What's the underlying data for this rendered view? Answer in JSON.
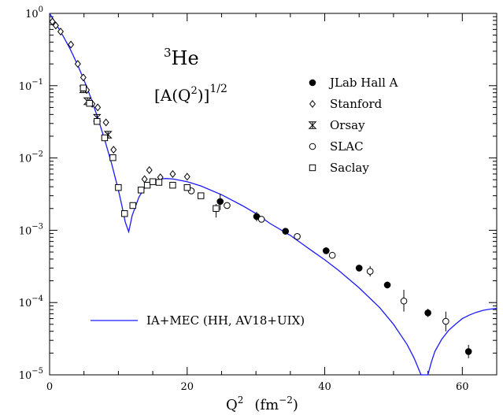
{
  "chart_data": {
    "type": "scatter",
    "title_line1": {
      "prefix": "3",
      "main": "He"
    },
    "title_line2": {
      "open": "[A(Q",
      "sup": "2",
      "close": ")]",
      "exp": "1/2"
    },
    "xlabel": {
      "main": "Q",
      "sup1": "2",
      "unit_open": "(fm",
      "sup2": "−2",
      "unit_close": ")"
    },
    "xlim": [
      0,
      65
    ],
    "ylim": [
      1e-05,
      1
    ],
    "yscale": "log",
    "xticks": [
      0,
      20,
      40,
      60
    ],
    "xtick_labels": [
      "0",
      "20",
      "40",
      "60"
    ],
    "yticks": [
      {
        "value": 1,
        "base": "10",
        "exp": "0"
      },
      {
        "value": 0.1,
        "base": "10",
        "exp": "−1"
      },
      {
        "value": 0.01,
        "base": "10",
        "exp": "−2"
      },
      {
        "value": 0.001,
        "base": "10",
        "exp": "−3"
      },
      {
        "value": 0.0001,
        "base": "10",
        "exp": "−4"
      },
      {
        "value": 1e-05,
        "base": "10",
        "exp": "−5"
      }
    ],
    "grid": false,
    "legend_placement": "right",
    "series": [
      {
        "name": "JLab Hall A",
        "marker": "filled-circle",
        "points": [
          [
            24.8,
            0.0025
          ],
          [
            30.1,
            0.00155
          ],
          [
            34.3,
            0.00097
          ],
          [
            40.2,
            0.00052
          ],
          [
            45.0,
            0.0003
          ],
          [
            49.1,
            0.000175
          ],
          [
            55.0,
            7.2e-05
          ],
          [
            60.9,
            2.1e-05
          ]
        ],
        "err": [
          [
            0.0032,
            0.0019
          ],
          [
            0.0018,
            0.00133
          ],
          [
            0.00107,
            0.00087
          ],
          [
            0.00058,
            0.00047
          ],
          [
            0.00033,
            0.00027
          ],
          [
            0.000195,
            0.000158
          ],
          [
            8.2e-05,
            6.3e-05
          ],
          [
            2.6e-05,
            1.7e-05
          ]
        ]
      },
      {
        "name": "Stanford",
        "marker": "diamond",
        "points": [
          [
            0.4,
            0.77
          ],
          [
            0.9,
            0.68
          ],
          [
            1.6,
            0.56
          ],
          [
            3.1,
            0.37
          ],
          [
            4.1,
            0.2
          ],
          [
            4.9,
            0.13
          ],
          [
            5.4,
            0.087
          ],
          [
            6.2,
            0.056
          ],
          [
            7.0,
            0.05
          ],
          [
            8.2,
            0.031
          ],
          [
            9.3,
            0.013
          ],
          [
            13.8,
            0.0051
          ],
          [
            14.5,
            0.0068
          ],
          [
            16.1,
            0.0054
          ],
          [
            17.9,
            0.006
          ],
          [
            20.0,
            0.0055
          ]
        ],
        "err": null
      },
      {
        "name": "Orsay",
        "marker": "bowtie",
        "points": [
          [
            4.9,
            0.089
          ],
          [
            5.5,
            0.061
          ],
          [
            6.9,
            0.036
          ],
          [
            8.5,
            0.021
          ]
        ],
        "err": null
      },
      {
        "name": "SLAC",
        "marker": "open-circle",
        "points": [
          [
            20.6,
            0.0035
          ],
          [
            25.8,
            0.0022
          ],
          [
            30.8,
            0.00142
          ],
          [
            36.0,
            0.00082
          ],
          [
            41.1,
            0.00045
          ],
          [
            46.6,
            0.00027
          ],
          [
            51.5,
            0.000105
          ],
          [
            57.6,
            5.5e-05
          ]
        ],
        "err": [
          [
            0.0038,
            0.0032
          ],
          [
            0.0024,
            0.002
          ],
          [
            0.00155,
            0.0013
          ],
          [
            0.0009,
            0.00075
          ],
          [
            0.00049,
            0.00041
          ],
          [
            0.00032,
            0.00023
          ],
          [
            0.00015,
            7.5e-05
          ],
          [
            7.5e-05,
            4e-05
          ]
        ]
      },
      {
        "name": "Saclay",
        "marker": "open-square",
        "points": [
          [
            4.9,
            0.093
          ],
          [
            5.8,
            0.057
          ],
          [
            6.9,
            0.032
          ],
          [
            8.0,
            0.019
          ],
          [
            9.2,
            0.0101
          ],
          [
            10.0,
            0.0039
          ],
          [
            10.9,
            0.0017
          ],
          [
            12.1,
            0.0022
          ],
          [
            13.3,
            0.0036
          ],
          [
            14.2,
            0.0042
          ],
          [
            15.0,
            0.0047
          ],
          [
            15.9,
            0.0046
          ],
          [
            17.9,
            0.0042
          ],
          [
            20.0,
            0.0039
          ],
          [
            22.0,
            0.003
          ],
          [
            24.2,
            0.002
          ]
        ],
        "err": [
          null,
          null,
          null,
          null,
          null,
          null,
          null,
          null,
          null,
          null,
          null,
          null,
          null,
          null,
          null,
          [
            0.0023,
            0.0015
          ]
        ]
      }
    ],
    "curve": {
      "name": "IA+MEC (HH, AV18+UIX)",
      "color": "#1a1aff",
      "x": [
        0,
        1,
        2,
        3,
        4,
        5,
        6,
        7,
        8,
        9,
        10,
        10.5,
        11,
        11.5,
        12,
        13,
        14,
        15,
        16,
        17,
        18,
        20,
        22,
        25,
        28,
        30,
        32,
        35,
        38,
        40,
        42,
        45,
        48,
        50,
        52,
        53,
        54,
        54.5,
        55,
        55.5,
        56,
        57,
        58,
        59,
        60,
        61,
        62,
        63,
        64,
        65
      ],
      "y": [
        1,
        0.7,
        0.48,
        0.32,
        0.2,
        0.12,
        0.068,
        0.036,
        0.018,
        0.0085,
        0.0036,
        0.0022,
        0.0013,
        0.00095,
        0.0016,
        0.0029,
        0.0041,
        0.0048,
        0.0051,
        0.0052,
        0.0051,
        0.0047,
        0.0041,
        0.0031,
        0.0022,
        0.0017,
        0.00125,
        0.00085,
        0.00053,
        0.00039,
        0.00028,
        0.00016,
        8.5e-05,
        5e-05,
        2.6e-05,
        1.7e-05,
        1e-05,
        7e-06,
        1e-05,
        1.5e-05,
        2.1e-05,
        3.1e-05,
        4.1e-05,
        5e-05,
        6e-05,
        6.7e-05,
        7.3e-05,
        7.8e-05,
        8.1e-05,
        8.3e-05
      ]
    }
  }
}
